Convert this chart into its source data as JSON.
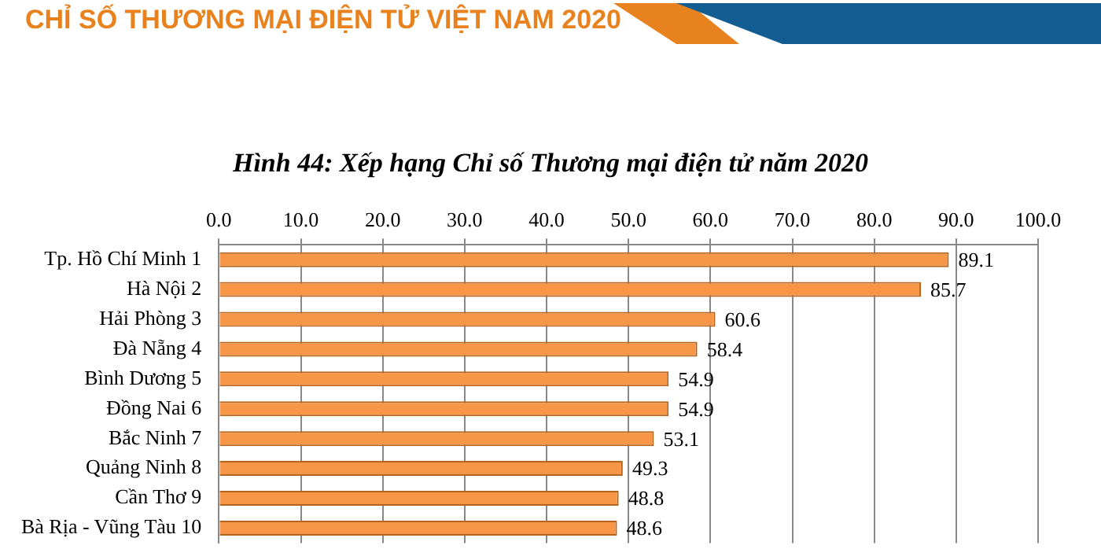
{
  "chart_data": {
    "type": "bar",
    "orientation": "horizontal",
    "title": "Hình 44: Xếp hạng Chỉ số Thương mại điện tử năm 2020",
    "annotations": [
      "CHỈ SỐ THƯƠNG MẠI ĐIỆN TỬ VIỆT NAM 2020"
    ],
    "categories": [
      "Tp. Hồ Chí Minh 1",
      "Hà Nội 2",
      "Hải Phòng 3",
      "Đà Nẵng 4",
      "Bình Dương 5",
      "Đồng Nai 6",
      "Bắc Ninh 7",
      "Quảng Ninh 8",
      "Cần Thơ 9",
      "Bà Rịa - Vũng Tàu 10"
    ],
    "values": [
      89.1,
      85.7,
      60.6,
      58.4,
      54.9,
      54.9,
      53.1,
      49.3,
      48.8,
      48.6
    ],
    "color": "#f79646",
    "xlim": [
      0,
      100
    ],
    "xticks": [
      {
        "value": 0,
        "label": "0.0"
      },
      {
        "value": 10,
        "label": "10.0"
      },
      {
        "value": 20,
        "label": "20.0"
      },
      {
        "value": 30,
        "label": "30.0"
      },
      {
        "value": 40,
        "label": "40.0"
      },
      {
        "value": 50,
        "label": "50.0"
      },
      {
        "value": 60,
        "label": "60.0"
      },
      {
        "value": 70,
        "label": "70.0"
      },
      {
        "value": 80,
        "label": "80.0"
      },
      {
        "value": 90,
        "label": "90.0"
      },
      {
        "value": 100,
        "label": "100.0"
      }
    ],
    "grid": true,
    "data_labels": true
  }
}
